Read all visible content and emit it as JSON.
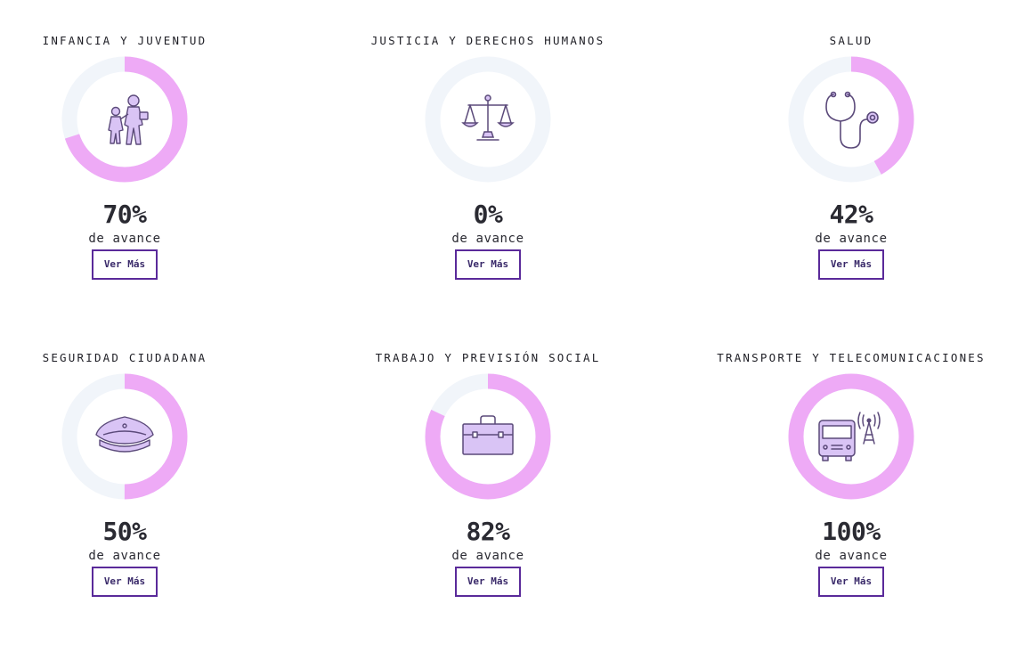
{
  "colors": {
    "progress": "#eeaaf6",
    "track": "#f1f5fa",
    "button_border": "#5a2a9a",
    "icon_fill": "#d9c4f5",
    "icon_stroke": "#5b4a7a"
  },
  "avance_label": "de avance",
  "button_label": "Ver Más",
  "cards": [
    {
      "title": "INFANCIA Y JUVENTUD",
      "percent_text": "70%",
      "percent": 70,
      "icon": "children-icon"
    },
    {
      "title": "JUSTICIA Y DERECHOS HUMANOS",
      "percent_text": "0%",
      "percent": 0,
      "icon": "scales-icon"
    },
    {
      "title": "SALUD",
      "percent_text": "42%",
      "percent": 42,
      "icon": "stethoscope-icon"
    },
    {
      "title": "SEGURIDAD CIUDADANA",
      "percent_text": "50%",
      "percent": 50,
      "icon": "police-cap-icon"
    },
    {
      "title": "TRABAJO Y PREVISIÓN SOCIAL",
      "percent_text": "82%",
      "percent": 82,
      "icon": "briefcase-icon"
    },
    {
      "title": "TRANSPORTE Y TELECOMUNICACIONES",
      "percent_text": "100%",
      "percent": 100,
      "icon": "bus-antenna-icon"
    }
  ]
}
